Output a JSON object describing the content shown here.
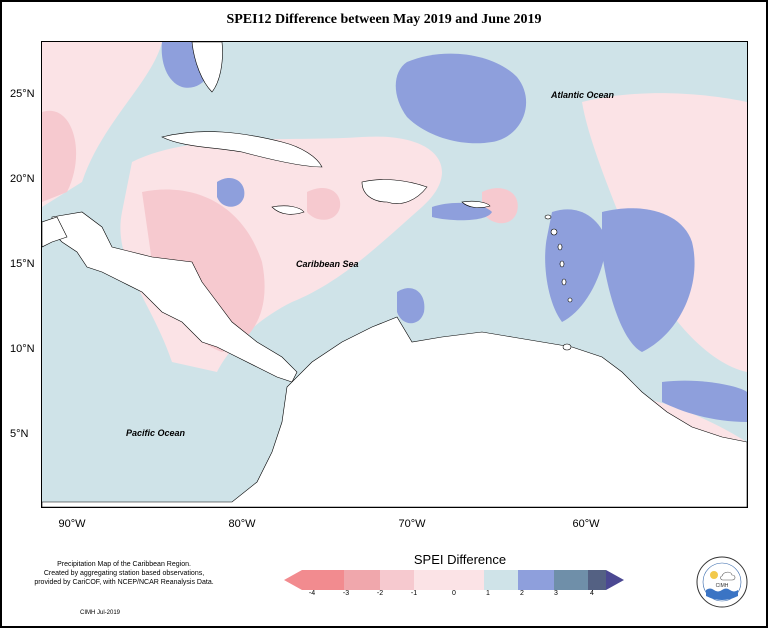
{
  "title": "SPEI12 Difference between May 2019 and June 2019",
  "axes": {
    "y_ticks": [
      "25°N",
      "20°N",
      "15°N",
      "10°N",
      "5°N"
    ],
    "x_ticks": [
      "90°W",
      "80°W",
      "70°W",
      "60°W"
    ]
  },
  "labels": {
    "atlantic": "Atlantic Ocean",
    "caribbean": "Caribbean Sea",
    "pacific": "Pacific Ocean"
  },
  "legend": {
    "title": "SPEI Difference",
    "ticks": [
      "-4",
      "-3",
      "-2",
      "-1",
      "0",
      "1",
      "2",
      "3",
      "4"
    ],
    "colors": [
      "#f28b8f",
      "#f0a7ac",
      "#f6c9cf",
      "#fbe3e6",
      "#cfe3e8",
      "#8e9fdc",
      "#6f8fa9",
      "#546183"
    ]
  },
  "credits": {
    "line1": "Precipitation Map of the Caribbean Region.",
    "line2": "Created by aggregating station based observations,",
    "line3": "provided by CariCOF, with NCEP/NCAR Reanalysis Data.",
    "footer": "CIMH Jul-2019"
  },
  "logo": {
    "text": "CIMH"
  },
  "map_colors": {
    "pos1": "#cfe3e8",
    "pos2": "#8e9fdc",
    "neg1": "#fbe3e6",
    "neg2": "#f6c9cf",
    "land": "#ffffff"
  }
}
